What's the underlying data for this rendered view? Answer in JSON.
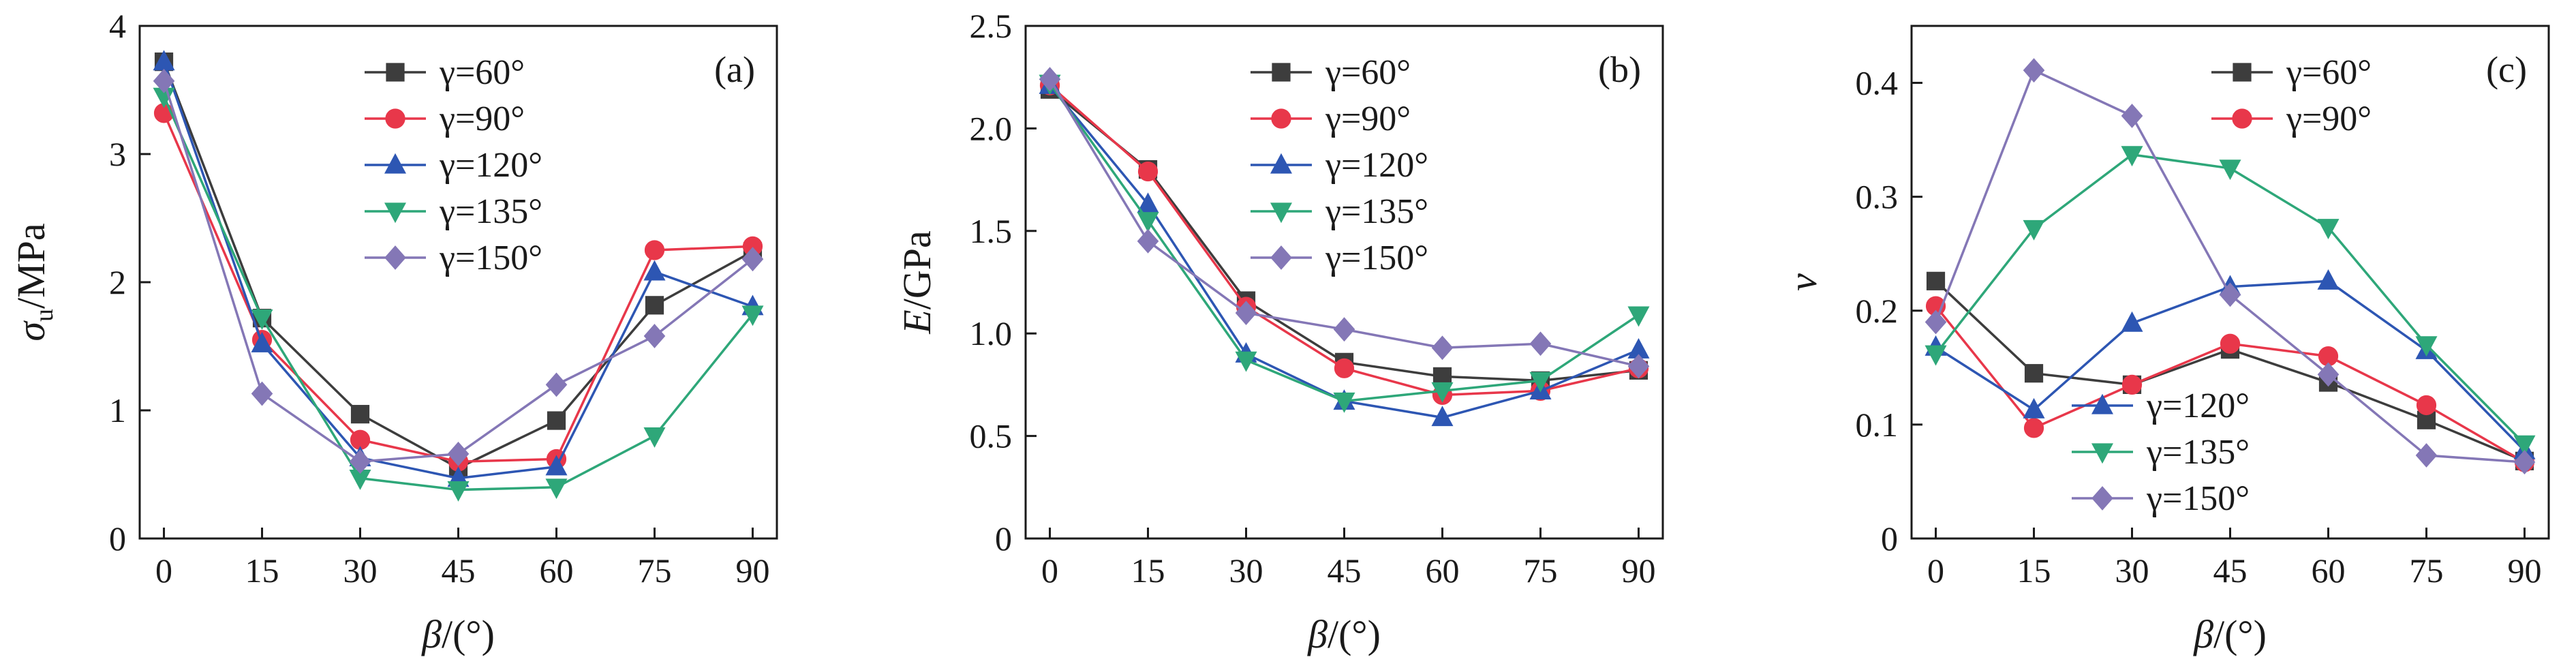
{
  "figure": {
    "colors": {
      "60": "#3d3d3d",
      "90": "#e8374a",
      "120": "#2d56b3",
      "135": "#2ea779",
      "150": "#8477b6"
    }
  },
  "chart_data": [
    {
      "type": "line",
      "panel_tag": "(a)",
      "ylabel_main": "σ",
      "ylabel_sub": "u",
      "ylabel_rest": "/MPa",
      "xlabel_main": "β",
      "xlabel_rest": "/(°)",
      "x": [
        0,
        15,
        30,
        45,
        60,
        75,
        90
      ],
      "xticks": [
        "0",
        "15",
        "30",
        "45",
        "60",
        "75",
        "90"
      ],
      "ylim": [
        0,
        4
      ],
      "yticks": [
        0,
        1,
        2,
        3,
        4
      ],
      "ytick_labels": [
        "0",
        "1",
        "2",
        "3",
        "4"
      ],
      "legend": "top-right",
      "series": [
        {
          "key": "60",
          "name": "γ=60°",
          "marker": "square",
          "values": [
            3.72,
            1.72,
            0.97,
            0.55,
            0.92,
            1.82,
            2.24
          ]
        },
        {
          "key": "90",
          "name": "γ=90°",
          "marker": "circle",
          "values": [
            3.32,
            1.55,
            0.77,
            0.6,
            0.62,
            2.25,
            2.28
          ]
        },
        {
          "key": "120",
          "name": "γ=120°",
          "marker": "triangle-up",
          "values": [
            3.72,
            1.52,
            0.63,
            0.47,
            0.56,
            2.08,
            1.81
          ]
        },
        {
          "key": "135",
          "name": "γ=135°",
          "marker": "triangle-down",
          "values": [
            3.45,
            1.72,
            0.47,
            0.38,
            0.4,
            0.8,
            1.75
          ]
        },
        {
          "key": "150",
          "name": "γ=150°",
          "marker": "diamond",
          "values": [
            3.57,
            1.13,
            0.6,
            0.66,
            1.2,
            1.58,
            2.18
          ]
        }
      ]
    },
    {
      "type": "line",
      "panel_tag": "(b)",
      "ylabel_main": "E",
      "ylabel_sub": "",
      "ylabel_rest": "/GPa",
      "xlabel_main": "β",
      "xlabel_rest": "/(°)",
      "x": [
        0,
        15,
        30,
        45,
        60,
        75,
        90
      ],
      "xticks": [
        "0",
        "15",
        "30",
        "45",
        "60",
        "75",
        "90"
      ],
      "ylim": [
        0,
        2.5
      ],
      "yticks": [
        0,
        0.5,
        1.0,
        1.5,
        2.0,
        2.5
      ],
      "ytick_labels": [
        "0",
        "0.5",
        "1.0",
        "1.5",
        "2.0",
        "2.5"
      ],
      "legend": "top-right",
      "series": [
        {
          "key": "60",
          "name": "γ=60°",
          "marker": "square",
          "values": [
            2.19,
            1.8,
            1.16,
            0.86,
            0.79,
            0.77,
            0.82
          ]
        },
        {
          "key": "90",
          "name": "γ=90°",
          "marker": "circle",
          "values": [
            2.21,
            1.79,
            1.13,
            0.83,
            0.7,
            0.72,
            0.83
          ]
        },
        {
          "key": "120",
          "name": "γ=120°",
          "marker": "triangle-up",
          "values": [
            2.21,
            1.63,
            0.9,
            0.67,
            0.59,
            0.72,
            0.92
          ]
        },
        {
          "key": "135",
          "name": "γ=135°",
          "marker": "triangle-down",
          "values": [
            2.22,
            1.55,
            0.87,
            0.67,
            0.72,
            0.77,
            1.09
          ]
        },
        {
          "key": "150",
          "name": "γ=150°",
          "marker": "diamond",
          "values": [
            2.24,
            1.45,
            1.1,
            1.02,
            0.93,
            0.95,
            0.84
          ]
        }
      ]
    },
    {
      "type": "line",
      "panel_tag": "(c)",
      "ylabel_main": "ν",
      "ylabel_sub": "",
      "ylabel_rest": "",
      "xlabel_main": "β",
      "xlabel_rest": "/(°)",
      "x": [
        0,
        15,
        30,
        45,
        60,
        75,
        90
      ],
      "xticks": [
        "0",
        "15",
        "30",
        "45",
        "60",
        "75",
        "90"
      ],
      "ylim": [
        0,
        0.45
      ],
      "yticks": [
        0,
        0.1,
        0.2,
        0.3,
        0.4
      ],
      "ytick_labels": [
        "0",
        "0.1",
        "0.2",
        "0.3",
        "0.4"
      ],
      "legend": "split: top-right and bottom-left",
      "series": [
        {
          "key": "60",
          "name": "γ=60°",
          "marker": "square",
          "values": [
            0.226,
            0.145,
            0.135,
            0.166,
            0.137,
            0.104,
            0.068
          ]
        },
        {
          "key": "90",
          "name": "γ=90°",
          "marker": "circle",
          "values": [
            0.204,
            0.097,
            0.135,
            0.171,
            0.16,
            0.117,
            0.067
          ]
        },
        {
          "key": "120",
          "name": "γ=120°",
          "marker": "triangle-up",
          "values": [
            0.168,
            0.113,
            0.189,
            0.221,
            0.226,
            0.165,
            0.077
          ]
        },
        {
          "key": "135",
          "name": "γ=135°",
          "marker": "triangle-down",
          "values": [
            0.162,
            0.272,
            0.337,
            0.325,
            0.273,
            0.17,
            0.083
          ]
        },
        {
          "key": "150",
          "name": "γ=150°",
          "marker": "diamond",
          "values": [
            0.19,
            0.411,
            0.371,
            0.214,
            0.144,
            0.073,
            0.067
          ]
        }
      ]
    }
  ]
}
